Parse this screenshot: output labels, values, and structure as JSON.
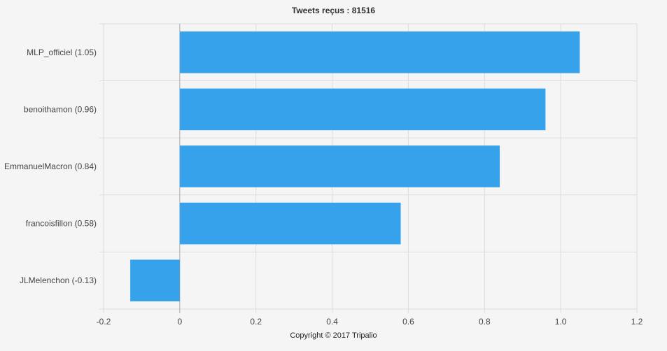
{
  "title": "Tweets reçus : 81516",
  "copyright": "Copyright © 2017 Tripalio",
  "colors": {
    "bar": "#36a2eb",
    "grid": "#dddddd",
    "zero_line": "#aaaaaa",
    "background": "#f5f5f5"
  },
  "chart_data": {
    "type": "bar",
    "orientation": "horizontal",
    "title": "Tweets reçus : 81516",
    "categories": [
      "MLP_officiel (1.05)",
      "benoithamon (0.96)",
      "EmmanuelMacron (0.84)",
      "francoisfillon (0.58)",
      "JLMelenchon (-0.13)"
    ],
    "values": [
      1.05,
      0.96,
      0.84,
      0.58,
      -0.13
    ],
    "xlim": [
      -0.2,
      1.2
    ],
    "x_ticks": [
      "-0.2",
      "0",
      "0.2",
      "0.4",
      "0.6",
      "0.8",
      "1.0",
      "1.2"
    ],
    "x_tick_values": [
      -0.2,
      0,
      0.2,
      0.4,
      0.6,
      0.8,
      1.0,
      1.2
    ],
    "grid": true,
    "legend": "none"
  }
}
